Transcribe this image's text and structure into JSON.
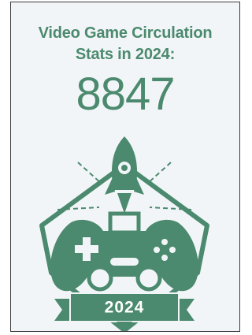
{
  "header": {
    "title": "Video Game Circulation Stats in 2024:"
  },
  "stat": {
    "value": 8847
  },
  "badge": {
    "year": "2024"
  }
}
